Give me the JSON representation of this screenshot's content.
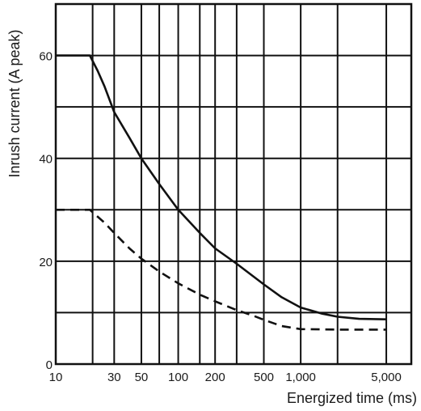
{
  "chart_data": {
    "type": "line",
    "title": "",
    "xlabel": "Energized time (ms)",
    "ylabel": "Inrush current (A peak)",
    "xscale": "log",
    "xlim": [
      10,
      8000
    ],
    "ylim": [
      0,
      70
    ],
    "grid": true,
    "legend": "none",
    "x_ticks": [
      10,
      30,
      50,
      100,
      200,
      500,
      1000,
      5000
    ],
    "x_tick_labels": [
      "10",
      "30",
      "50",
      "100",
      "200",
      "500",
      "1,000",
      "5,000"
    ],
    "x_grid": [
      10,
      20,
      30,
      50,
      70,
      100,
      150,
      200,
      300,
      500,
      1000,
      2000,
      5000
    ],
    "y_ticks": [
      0,
      20,
      40,
      60
    ],
    "y_tick_labels": [
      "0",
      "20",
      "40",
      "60"
    ],
    "y_grid": [
      10,
      20,
      30,
      40,
      50,
      60
    ],
    "series": [
      {
        "style": "solid",
        "color": "#111111",
        "x": [
          10,
          19,
          22,
          25,
          30,
          40,
          50,
          70,
          100,
          150,
          200,
          300,
          500,
          700,
          1000,
          1500,
          2000,
          3000,
          5000
        ],
        "y": [
          60,
          60,
          57,
          54,
          49,
          44,
          40,
          35,
          30,
          25.5,
          22.5,
          19.5,
          15.5,
          13,
          11,
          9.8,
          9.2,
          8.8,
          8.7
        ]
      },
      {
        "style": "dashed",
        "color": "#111111",
        "x": [
          10,
          19,
          25,
          30,
          40,
          50,
          70,
          100,
          150,
          200,
          300,
          400,
          500,
          700,
          1000,
          2000,
          5000
        ],
        "y": [
          30,
          30,
          27.5,
          25.5,
          22.5,
          20.5,
          18,
          15.7,
          13.5,
          12.2,
          10.5,
          9.5,
          8.6,
          7.4,
          6.8,
          6.7,
          6.7
        ]
      }
    ]
  }
}
